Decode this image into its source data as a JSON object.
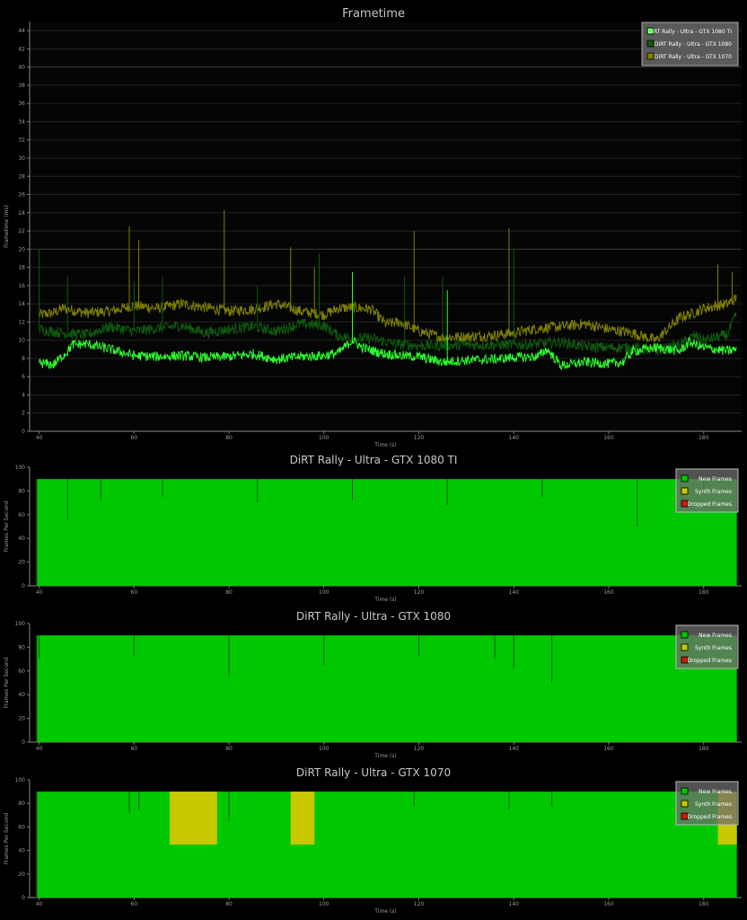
{
  "chart_data": [
    {
      "type": "line",
      "title": "Frametime",
      "xlabel": "Time (s)",
      "ylabel": "Frametime (ms)",
      "xlim": [
        38,
        188
      ],
      "ylim": [
        0,
        45
      ],
      "xticks": [
        40,
        60,
        80,
        100,
        120,
        140,
        160,
        180
      ],
      "yticks": [
        0,
        2,
        4,
        6,
        8,
        10,
        12,
        14,
        16,
        18,
        20,
        22,
        24,
        26,
        28,
        30,
        32,
        34,
        36,
        38,
        40,
        42,
        44
      ],
      "grid": true,
      "legend_position": "top-right",
      "series": [
        {
          "name": "DiRT Rally - Ultra - GTX 1080 TI",
          "color": "#2dfa2d",
          "x": [
            40,
            43,
            46,
            47,
            50,
            55,
            60,
            65,
            70,
            75,
            80,
            85,
            90,
            95,
            100,
            103,
            106,
            108,
            112,
            116,
            120,
            125,
            130,
            135,
            140,
            145,
            147,
            150,
            155,
            160,
            163,
            165,
            170,
            175,
            177,
            180,
            185,
            187
          ],
          "y": [
            7.5,
            7.3,
            8.8,
            9.5,
            9.6,
            9.0,
            8.3,
            8.2,
            8.3,
            8.1,
            8.2,
            8.5,
            7.9,
            8.2,
            8.3,
            8.6,
            10.0,
            9.2,
            8.6,
            8.3,
            8.2,
            7.6,
            7.8,
            7.9,
            8.1,
            8.2,
            9.0,
            7.2,
            7.6,
            7.4,
            7.6,
            8.8,
            9.2,
            8.8,
            9.8,
            9.2,
            8.8,
            9.0
          ],
          "spikes": [
            [
              106,
              17.5
            ],
            [
              126,
              15.5
            ]
          ]
        },
        {
          "name": "DiRT Rally - Ultra - GTX 1080",
          "color": "#0e5a0e",
          "x": [
            40,
            45,
            50,
            55,
            60,
            65,
            70,
            75,
            80,
            85,
            90,
            95,
            100,
            103,
            106,
            110,
            115,
            120,
            125,
            130,
            135,
            140,
            145,
            150,
            155,
            160,
            165,
            170,
            175,
            178,
            180,
            185,
            187
          ],
          "y": [
            11.2,
            10.8,
            10.6,
            11.5,
            11.0,
            11.3,
            11.6,
            10.8,
            11.2,
            11.5,
            11.0,
            11.8,
            11.6,
            10.5,
            10.2,
            10.2,
            9.6,
            9.4,
            9.4,
            9.5,
            9.5,
            9.5,
            9.6,
            9.8,
            9.3,
            9.2,
            9.2,
            8.8,
            9.5,
            10.5,
            10.0,
            10.6,
            13.0
          ],
          "spikes": [
            [
              40,
              20.0
            ],
            [
              46,
              17.0
            ],
            [
              60,
              16.5
            ],
            [
              66,
              17.0
            ],
            [
              86,
              16.0
            ],
            [
              99,
              19.5
            ],
            [
              117,
              17.0
            ],
            [
              125,
              17.0
            ],
            [
              140,
              20.0
            ]
          ]
        },
        {
          "name": "DiRT Rally - Ultra - GTX 1070",
          "color": "#808000",
          "x": [
            40,
            43,
            45,
            50,
            55,
            60,
            65,
            70,
            75,
            80,
            85,
            90,
            95,
            100,
            103,
            106,
            110,
            113,
            116,
            120,
            125,
            130,
            135,
            140,
            145,
            150,
            155,
            160,
            165,
            170,
            175,
            178,
            180,
            185,
            187
          ],
          "y": [
            12.8,
            13.0,
            13.5,
            13.0,
            13.2,
            13.8,
            13.5,
            14.0,
            13.6,
            13.2,
            13.4,
            14.0,
            13.2,
            12.8,
            13.5,
            13.6,
            13.4,
            11.8,
            12.0,
            11.0,
            10.3,
            10.4,
            10.5,
            10.8,
            11.3,
            11.5,
            11.8,
            11.2,
            10.8,
            10.0,
            12.5,
            13.0,
            13.5,
            14.0,
            14.6
          ],
          "spikes": [
            [
              59,
              22.5
            ],
            [
              61,
              21.0
            ],
            [
              79,
              24.3
            ],
            [
              93,
              20.2
            ],
            [
              98,
              18.0
            ],
            [
              119,
              22.0
            ],
            [
              139,
              22.3
            ],
            [
              183,
              18.3
            ],
            [
              186,
              17.5
            ]
          ]
        }
      ]
    },
    {
      "type": "area",
      "title": "DiRT Rally - Ultra - GTX 1080 TI",
      "xlabel": "Time (s)",
      "ylabel": "Frames Per Second",
      "xlim": [
        38,
        188
      ],
      "ylim": [
        0,
        100
      ],
      "xticks": [
        40,
        60,
        80,
        100,
        120,
        140,
        160,
        180
      ],
      "yticks": [
        0,
        20,
        40,
        60,
        80,
        100
      ],
      "legend_position": "top-right",
      "legend": [
        "New Frames",
        "Synth Frames",
        "Dropped Frames"
      ],
      "colors": {
        "new": "#00c800",
        "synth": "#c8c800",
        "dropped": "#c81e00"
      },
      "x_range": [
        39.5,
        187
      ],
      "new_frames": 90,
      "synth_segments": [],
      "dips": [
        [
          46,
          55
        ],
        [
          53,
          72
        ],
        [
          66,
          75
        ],
        [
          86,
          70
        ],
        [
          106,
          72
        ],
        [
          126,
          68
        ],
        [
          146,
          75
        ],
        [
          166,
          50
        ],
        [
          180,
          80
        ]
      ]
    },
    {
      "type": "area",
      "title": "DiRT Rally - Ultra - GTX 1080",
      "xlabel": "Time (s)",
      "ylabel": "Frames Per Second",
      "xlim": [
        38,
        188
      ],
      "ylim": [
        0,
        100
      ],
      "xticks": [
        40,
        60,
        80,
        100,
        120,
        140,
        160,
        180
      ],
      "yticks": [
        0,
        20,
        40,
        60,
        80,
        100
      ],
      "legend_position": "top-right",
      "legend": [
        "New Frames",
        "Synth Frames",
        "Dropped Frames"
      ],
      "colors": {
        "new": "#00c800",
        "synth": "#c8c800",
        "dropped": "#c81e00"
      },
      "x_range": [
        39.5,
        187
      ],
      "new_frames": 90,
      "synth_segments": [],
      "dips": [
        [
          40,
          70
        ],
        [
          60,
          72
        ],
        [
          80,
          55
        ],
        [
          100,
          65
        ],
        [
          120,
          72
        ],
        [
          136,
          70
        ],
        [
          140,
          62
        ],
        [
          148,
          50
        ],
        [
          180,
          75
        ]
      ]
    },
    {
      "type": "area",
      "title": "DiRT Rally - Ultra - GTX 1070",
      "xlabel": "Time (s)",
      "ylabel": "Frames Per Second",
      "xlim": [
        38,
        188
      ],
      "ylim": [
        0,
        100
      ],
      "xticks": [
        40,
        60,
        80,
        100,
        120,
        140,
        160,
        180
      ],
      "yticks": [
        0,
        20,
        40,
        60,
        80,
        100
      ],
      "legend_position": "top-right",
      "legend": [
        "New Frames",
        "Synth Frames",
        "Dropped Frames"
      ],
      "colors": {
        "new": "#00c800",
        "synth": "#c8c800",
        "dropped": "#c81e00"
      },
      "x_range": [
        39.5,
        187
      ],
      "new_frames": 90,
      "synth_segments": [
        [
          67.5,
          77.5,
          45
        ],
        [
          93,
          98,
          45
        ],
        [
          183,
          187,
          45
        ]
      ],
      "dips": [
        [
          59,
          72
        ],
        [
          61,
          75
        ],
        [
          80,
          65
        ],
        [
          119,
          78
        ],
        [
          139,
          75
        ],
        [
          148,
          78
        ]
      ]
    }
  ]
}
